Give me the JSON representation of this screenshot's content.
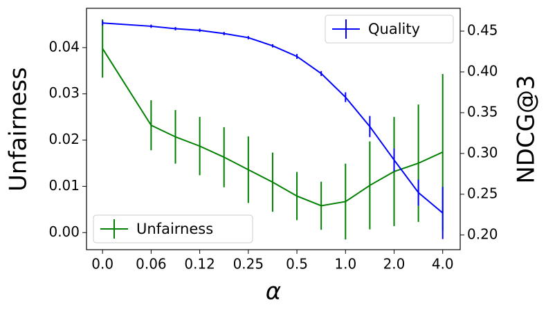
{
  "chart_data": {
    "type": "line",
    "x": [
      0,
      1,
      1.5,
      2,
      2.5,
      3,
      3.5,
      4,
      4.5,
      5,
      5.5,
      6,
      6.5,
      7
    ],
    "xlim": [
      -0.33,
      7.36
    ],
    "xticks": [
      {
        "value": 0,
        "label": "0.0"
      },
      {
        "value": 1,
        "label": "0.06"
      },
      {
        "value": 2,
        "label": "0.12"
      },
      {
        "value": 3,
        "label": "0.25"
      },
      {
        "value": 4,
        "label": "0.5"
      },
      {
        "value": 5,
        "label": "1.0"
      },
      {
        "value": 6,
        "label": "2.0"
      },
      {
        "value": 7,
        "label": "4.0"
      }
    ],
    "xlabel": "α",
    "ylabel": "Unfairness",
    "y2label": "NDCG@3",
    "ylim": [
      -0.0037,
      0.0485
    ],
    "yticks": [
      {
        "value": 0,
        "label": "0.00"
      },
      {
        "value": 0.01,
        "label": "0.01"
      },
      {
        "value": 0.02,
        "label": "0.02"
      },
      {
        "value": 0.03,
        "label": "0.03"
      },
      {
        "value": 0.04,
        "label": "0.04"
      }
    ],
    "y2lim": [
      0.182,
      0.478
    ],
    "y2ticks": [
      {
        "value": 0.2,
        "label": "0.20"
      },
      0.25,
      {
        "value": 0.3,
        "label": "0.30"
      },
      0.35,
      {
        "value": 0.4,
        "label": "0.40"
      },
      0.45
    ],
    "series": [
      {
        "name": "Unfairness",
        "color": "#008000",
        "legend": "lower left",
        "values": [
          0.0398,
          0.0232,
          0.0207,
          0.0187,
          0.0163,
          0.0136,
          0.0109,
          0.0079,
          0.0058,
          0.0067,
          0.0102,
          0.0132,
          0.015,
          0.0174
        ],
        "errors": [
          0.0063,
          0.0054,
          0.0058,
          0.0063,
          0.0065,
          0.0072,
          0.0064,
          0.0052,
          0.0052,
          0.0082,
          0.0095,
          0.0118,
          0.0127,
          0.0169
        ]
      },
      {
        "name": "Quality",
        "color": "#0000ff",
        "axis": "y2",
        "legend": "upper right",
        "values": [
          0.46,
          0.456,
          0.453,
          0.451,
          0.447,
          0.442,
          0.432,
          0.419,
          0.398,
          0.369,
          0.333,
          0.292,
          0.252,
          0.227
        ],
        "errors": [
          0.003,
          0.002,
          0.002,
          0.002,
          0.002,
          0.002,
          0.002,
          0.003,
          0.003,
          0.006,
          0.013,
          0.014,
          0.016,
          0.032
        ]
      }
    ]
  }
}
